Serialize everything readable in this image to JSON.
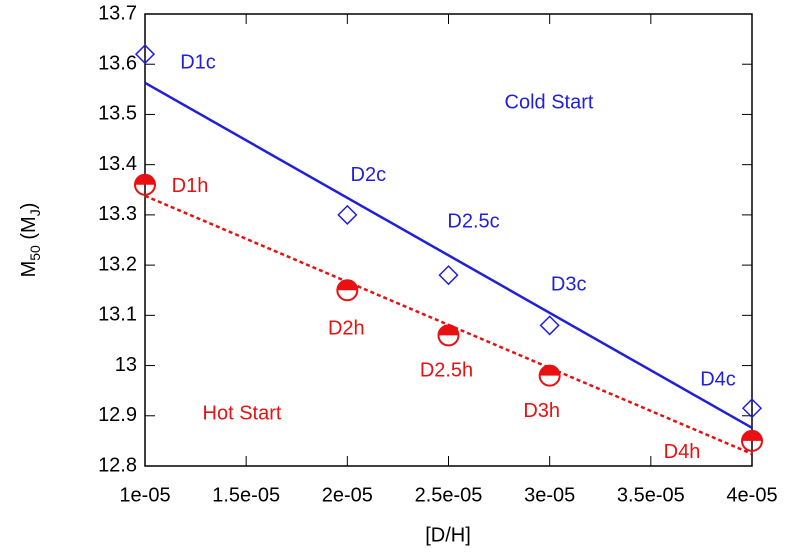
{
  "chart_data": {
    "type": "scatter",
    "xlabel": "[D/H]",
    "ylabel": [
      "M",
      "50",
      " (M",
      "J",
      ")"
    ],
    "xlim": [
      1e-05,
      4e-05
    ],
    "ylim": [
      12.8,
      13.7
    ],
    "xticks": [
      {
        "value": 1e-05,
        "label": "1e-05"
      },
      {
        "value": 1.5e-05,
        "label": "1.5e-05"
      },
      {
        "value": 2e-05,
        "label": "2e-05"
      },
      {
        "value": 2.5e-05,
        "label": "2.5e-05"
      },
      {
        "value": 3e-05,
        "label": "3e-05"
      },
      {
        "value": 3.5e-05,
        "label": "3.5e-05"
      },
      {
        "value": 4e-05,
        "label": "4e-05"
      }
    ],
    "yticks": [
      12.8,
      12.9,
      13,
      13.1,
      13.2,
      13.3,
      13.4,
      13.5,
      13.6,
      13.7
    ],
    "annotations": [
      "Cold Start",
      "Hot Start"
    ],
    "series": [
      {
        "kind": "points",
        "marker": "diamond",
        "color": "#1f1fdd",
        "x": [
          1e-05,
          2e-05,
          2.5e-05,
          3e-05,
          4e-05
        ],
        "values": [
          13.62,
          13.3,
          13.18,
          13.08,
          12.915
        ],
        "labels": [
          "D1c",
          "D2c",
          "D2.5c",
          "D3c",
          "D4c"
        ]
      },
      {
        "kind": "points",
        "marker": "half-circle",
        "color": "#e81010",
        "x": [
          1e-05,
          2e-05,
          2.5e-05,
          3e-05,
          4e-05
        ],
        "values": [
          13.36,
          13.15,
          13.06,
          12.98,
          12.85
        ],
        "labels": [
          "D1h",
          "D2h",
          "D2.5h",
          "D3h",
          "D4h"
        ]
      },
      {
        "kind": "line",
        "dash": false,
        "color": "#1f1fdd",
        "x": [
          1e-05,
          4e-05
        ],
        "values": [
          13.563,
          12.876
        ]
      },
      {
        "kind": "line",
        "dash": true,
        "color": "#e81010",
        "x": [
          1e-05,
          4e-05
        ],
        "values": [
          13.338,
          12.824
        ]
      }
    ]
  }
}
